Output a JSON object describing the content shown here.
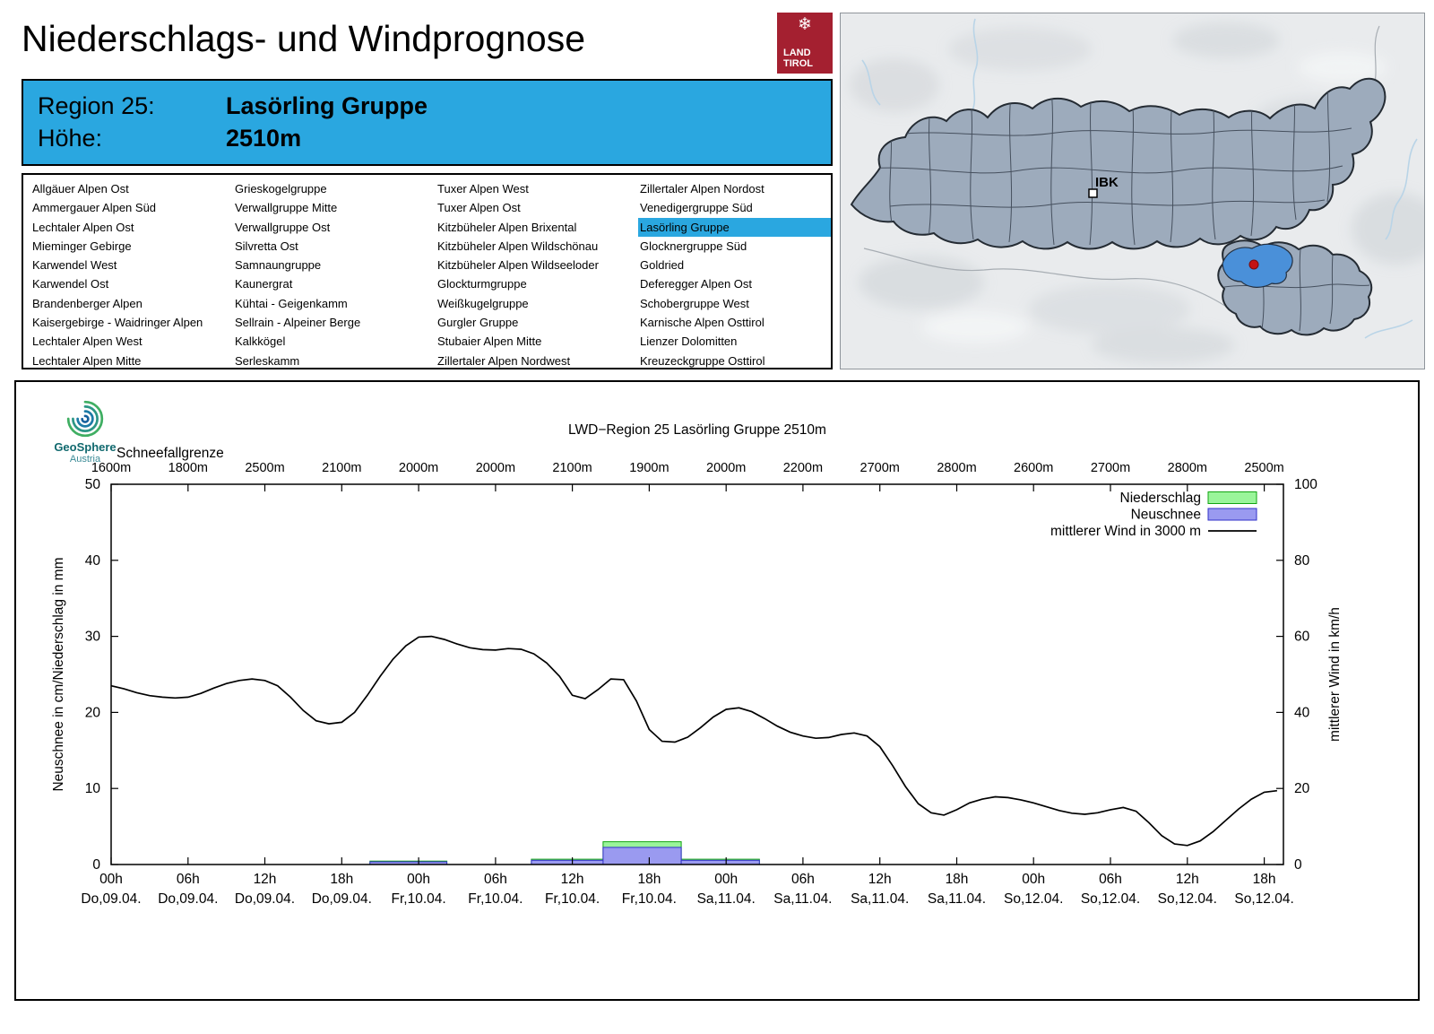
{
  "header": {
    "title": "Niederschlags- und Windprognose",
    "logo_line1": "LAND",
    "logo_line2": "TIROL"
  },
  "map": {
    "ibk_label": "IBK",
    "highlight_color": "#4a90d9",
    "marker_color": "#c41414"
  },
  "region_header": {
    "region_label": "Region 25:",
    "region_value": "Lasörling Gruppe",
    "altitude_label": "Höhe:",
    "altitude_value": "2510m",
    "accent_color": "#2aa7e0"
  },
  "region_list": {
    "selected": "Lasörling Gruppe",
    "columns": [
      [
        "Allgäuer Alpen Ost",
        "Ammergauer Alpen Süd",
        "Lechtaler Alpen Ost",
        "Mieminger Gebirge",
        "Karwendel West",
        "Karwendel Ost",
        "Brandenberger Alpen",
        "Kaisergebirge - Waidringer Alpen",
        "Lechtaler Alpen West",
        "Lechtaler Alpen Mitte"
      ],
      [
        "Grieskogelgruppe",
        "Verwallgruppe Mitte",
        "Verwallgruppe Ost",
        "Silvretta Ost",
        "Samnaungruppe",
        "Kaunergrat",
        "Kühtai - Geigenkamm",
        "Sellrain - Alpeiner Berge",
        "Kalkkögel",
        "Serleskamm"
      ],
      [
        "Tuxer Alpen West",
        "Tuxer Alpen Ost",
        "Kitzbüheler Alpen Brixental",
        "Kitzbüheler Alpen Wildschönau",
        "Kitzbüheler Alpen Wildseeloder",
        "Glockturmgruppe",
        "Weißkugelgruppe",
        "Gurgler Gruppe",
        "Stubaier Alpen Mitte",
        "Zillertaler Alpen Nordwest"
      ],
      [
        "Zillertaler Alpen Nordost",
        "Venedigergruppe Süd",
        "Lasörling Gruppe",
        "Glocknergruppe Süd",
        "Goldried",
        "Deferegger Alpen Ost",
        "Schobergruppe West",
        "Karnische Alpen Osttirol",
        "Lienzer Dolomitten",
        "Kreuzeckgruppe Osttirol"
      ]
    ]
  },
  "geosphere": {
    "name": "GeoSphere",
    "country": "Austria"
  },
  "chart_data": {
    "type": "line+bar",
    "title": "LWD−Region 25 Lasörling Gruppe 2510m",
    "snowline_label": "Schneefallgrenze",
    "snowline_values": [
      "1600m",
      "1800m",
      "2500m",
      "2100m",
      "2000m",
      "2000m",
      "2100m",
      "1900m",
      "2000m",
      "2200m",
      "2700m",
      "2800m",
      "2600m",
      "2700m",
      "2800m",
      "2500m"
    ],
    "x_tick_hours": [
      "00h",
      "06h",
      "12h",
      "18h",
      "00h",
      "06h",
      "12h",
      "18h",
      "00h",
      "06h",
      "12h",
      "18h",
      "00h",
      "06h",
      "12h",
      "18h"
    ],
    "x_tick_days": [
      "Do,09.04.",
      "Do,09.04.",
      "Do,09.04.",
      "Do,09.04.",
      "Fr,10.04.",
      "Fr,10.04.",
      "Fr,10.04.",
      "Fr,10.04.",
      "Sa,11.04.",
      "Sa,11.04.",
      "Sa,11.04.",
      "Sa,11.04.",
      "So,12.04.",
      "So,12.04.",
      "So,12.04.",
      "So,12.04."
    ],
    "ylabel_left": "Neuschnee in cm/Niederschlag in mm",
    "ylabel_right": "mittlerer Wind in km/h",
    "ylim_left": [
      0,
      50
    ],
    "ylim_right": [
      0,
      100
    ],
    "x_hours_max": 91.5,
    "legend": [
      {
        "label": "Niederschlag",
        "type": "box",
        "fill": "#9af59a",
        "border": "#12a512"
      },
      {
        "label": "Neuschnee",
        "type": "box",
        "fill": "#9a9af0",
        "border": "#3232c8"
      },
      {
        "label": "mittlerer Wind in 3000 m",
        "type": "line",
        "color": "#000000"
      }
    ],
    "colors": {
      "precip_fill": "#9af59a",
      "precip_stroke": "#12a512",
      "snow_fill": "#9a9af0",
      "snow_stroke": "#3232c8",
      "wind": "#000000"
    },
    "bars": [
      {
        "start": 20.2,
        "end": 26.2,
        "precip_mm": 0.45,
        "snow_cm": 0.35
      },
      {
        "start": 32.8,
        "end": 38.4,
        "precip_mm": 0.7,
        "snow_cm": 0.55
      },
      {
        "start": 38.4,
        "end": 44.5,
        "precip_mm": 3.0,
        "snow_cm": 2.25
      },
      {
        "start": 44.5,
        "end": 50.6,
        "precip_mm": 0.7,
        "snow_cm": 0.55
      }
    ],
    "wind_kmh": [
      47,
      46.2,
      45.2,
      44.4,
      44,
      43.8,
      44,
      45,
      46.4,
      47.6,
      48.4,
      48.8,
      48.4,
      47,
      44,
      40.5,
      37.8,
      37,
      37.4,
      40,
      44.5,
      49.5,
      54,
      57.5,
      59.8,
      60,
      59.2,
      58,
      57,
      56.5,
      56.4,
      56.8,
      56.6,
      55.4,
      53,
      49.5,
      44.5,
      43.6,
      46,
      48.8,
      48.6,
      43,
      35.5,
      32.4,
      32.2,
      33.5,
      36,
      38.8,
      40.8,
      41.2,
      40.2,
      38.4,
      36.4,
      34.8,
      33.8,
      33.2,
      33.4,
      34.2,
      34.6,
      33.8,
      31,
      26,
      20.5,
      16,
      13.6,
      13,
      14.4,
      16.2,
      17.2,
      17.8,
      17.6,
      17,
      16.2,
      15.2,
      14.2,
      13.5,
      13.2,
      13.6,
      14.4,
      15,
      14,
      11,
      7.6,
      5.4,
      5,
      6.2,
      8.6,
      11.6,
      14.6,
      17.2,
      19,
      19.4
    ]
  }
}
